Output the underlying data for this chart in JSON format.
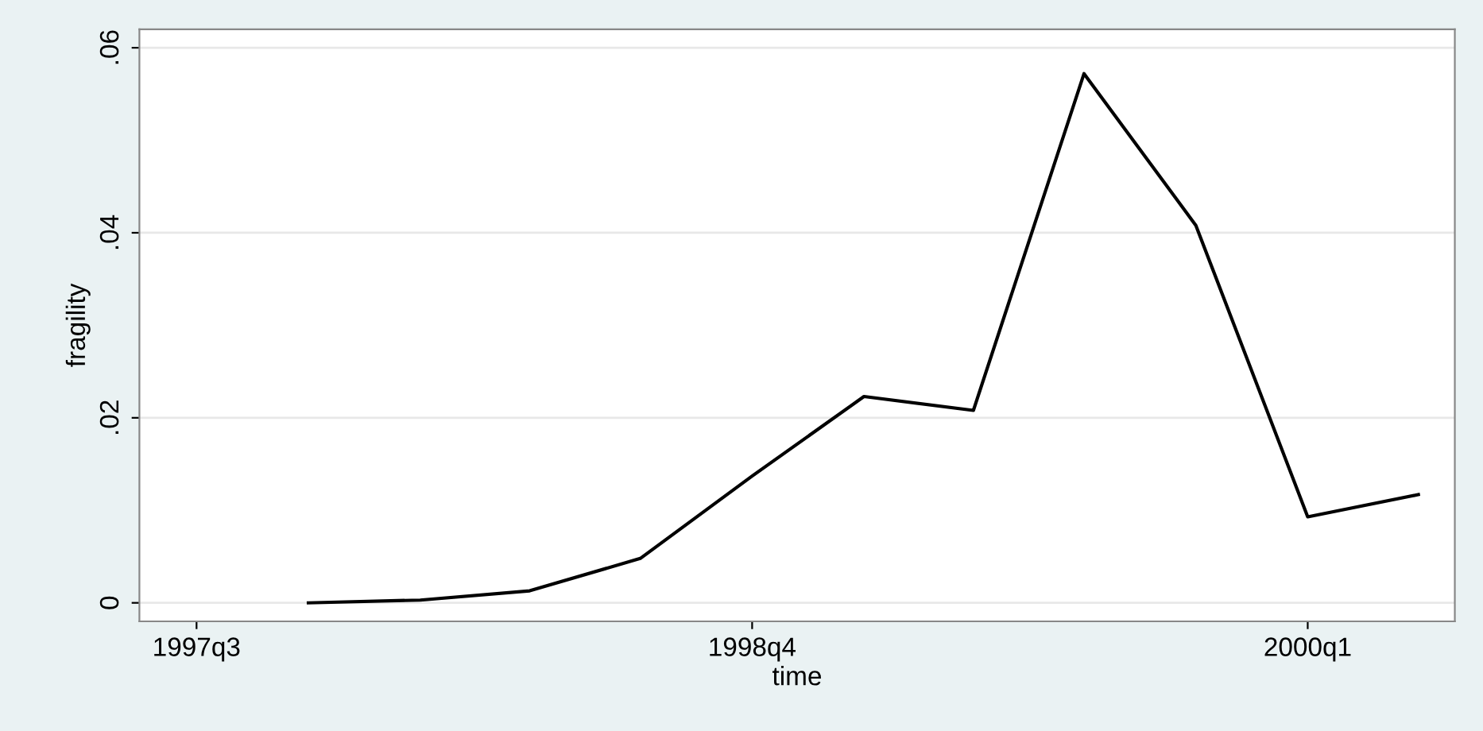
{
  "chart_data": {
    "type": "line",
    "xlabel": "time",
    "ylabel": "fragility",
    "x": [
      "1997-10",
      "1998-01",
      "1998-04",
      "1998-07",
      "1998-10",
      "1999-01",
      "1999-04",
      "1999-07",
      "1999-10",
      "2000-01",
      "2000-04"
    ],
    "series": [
      {
        "color": "#000000",
        "values": [
          0,
          0.0003,
          0.0013,
          0.0048,
          0.0137,
          0.0223,
          0.0208,
          0.0572,
          0.0408,
          0.0093,
          0.0117
        ]
      }
    ],
    "xlim": [
      "1997-05-15",
      "2000-05-01"
    ],
    "xticks": [
      {
        "value": "1997-07",
        "label": "1997q3"
      },
      {
        "value": "1998-10",
        "label": "1998q4"
      },
      {
        "value": "2000-01",
        "label": "2000q1"
      }
    ],
    "ylim": [
      -0.002,
      0.062
    ],
    "yticks": [
      {
        "value": 0,
        "label": "0"
      },
      {
        "value": 0.02,
        "label": ".02"
      },
      {
        "value": 0.04,
        "label": ".04"
      },
      {
        "value": 0.06,
        "label": ".06"
      }
    ],
    "grid": "y",
    "marker": "none",
    "line_style": "solid"
  }
}
